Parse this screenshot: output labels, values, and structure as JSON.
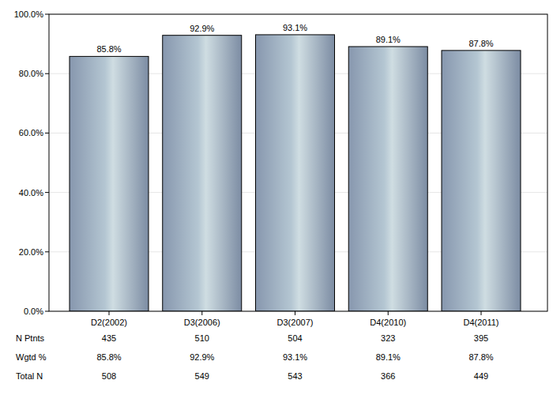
{
  "chart_data": {
    "type": "bar",
    "categories": [
      "D2(2002)",
      "D3(2006)",
      "D3(2007)",
      "D4(2010)",
      "D4(2011)"
    ],
    "values": [
      85.8,
      92.9,
      93.1,
      89.1,
      87.8
    ],
    "value_labels": [
      "85.8%",
      "92.9%",
      "93.1%",
      "89.1%",
      "87.8%"
    ],
    "data_labels": true,
    "color": "#b4c6d2",
    "ylim": [
      0,
      100
    ],
    "yticks": [
      {
        "value": 0,
        "label": "0.0%"
      },
      {
        "value": 20,
        "label": "20.0%"
      },
      {
        "value": 40,
        "label": "40.0%"
      },
      {
        "value": 60,
        "label": "60.0%"
      },
      {
        "value": 80,
        "label": "80.0%"
      },
      {
        "value": 100,
        "label": "100.0%"
      }
    ],
    "grid": true
  },
  "table": {
    "rows": [
      {
        "label": "N Ptnts",
        "values": [
          "435",
          "510",
          "504",
          "323",
          "395"
        ]
      },
      {
        "label": "Wgtd %",
        "values": [
          "85.8%",
          "92.9%",
          "93.1%",
          "89.1%",
          "87.8%"
        ]
      },
      {
        "label": "Total N",
        "values": [
          "508",
          "549",
          "543",
          "366",
          "449"
        ]
      }
    ]
  }
}
